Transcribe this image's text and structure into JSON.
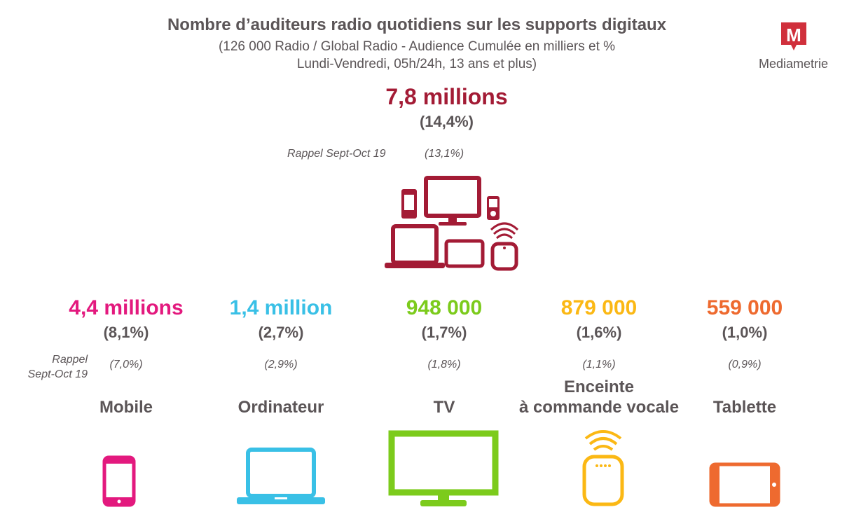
{
  "header": {
    "title": "Nombre d’auditeurs radio quotidiens sur les supports digitaux",
    "subtitle_line1": "(126 000 Radio / Global Radio - Audience Cumulée en milliers et %",
    "subtitle_line2": "Lundi-Vendredi, 05h/24h, 13 ans et plus)"
  },
  "logo": {
    "letter": "M",
    "name": "Mediametrie",
    "color": "#d0303c"
  },
  "total": {
    "value": "7,8 millions",
    "pct": "(14,4%)",
    "rappel_label": "Rappel Sept-Oct 19",
    "rappel_value": "(13,1%)",
    "color": "#a31b35",
    "icon": "multi-devices-icon"
  },
  "rappel_side": {
    "line1": "Rappel",
    "line2": "Sept-Oct 19"
  },
  "devices": [
    {
      "key": "mobile",
      "value": "4,4 millions",
      "pct": "(8,1%)",
      "rappel": "(7,0%)",
      "label": "Mobile",
      "color": "#e3197e",
      "icon": "smartphone-icon"
    },
    {
      "key": "ordinateur",
      "value": "1,4 million",
      "pct": "(2,7%)",
      "rappel": "(2,9%)",
      "label": "Ordinateur",
      "color": "#39c0e6",
      "icon": "laptop-icon"
    },
    {
      "key": "tv",
      "value": "948 000",
      "pct": "(1,7%)",
      "rappel": "(1,8%)",
      "label": "TV",
      "color": "#7ccb1c",
      "icon": "tv-icon"
    },
    {
      "key": "enceinte",
      "value": "879 000",
      "pct": "(1,6%)",
      "rappel": "(1,1%)",
      "label_line1": "Enceinte",
      "label_line2": "à commande vocale",
      "color": "#fbb814",
      "icon": "smart-speaker-icon"
    },
    {
      "key": "tablette",
      "value": "559 000",
      "pct": "(1,0%)",
      "rappel": "(0,9%)",
      "label": "Tablette",
      "color": "#ee6a2f",
      "icon": "tablet-icon"
    }
  ]
}
